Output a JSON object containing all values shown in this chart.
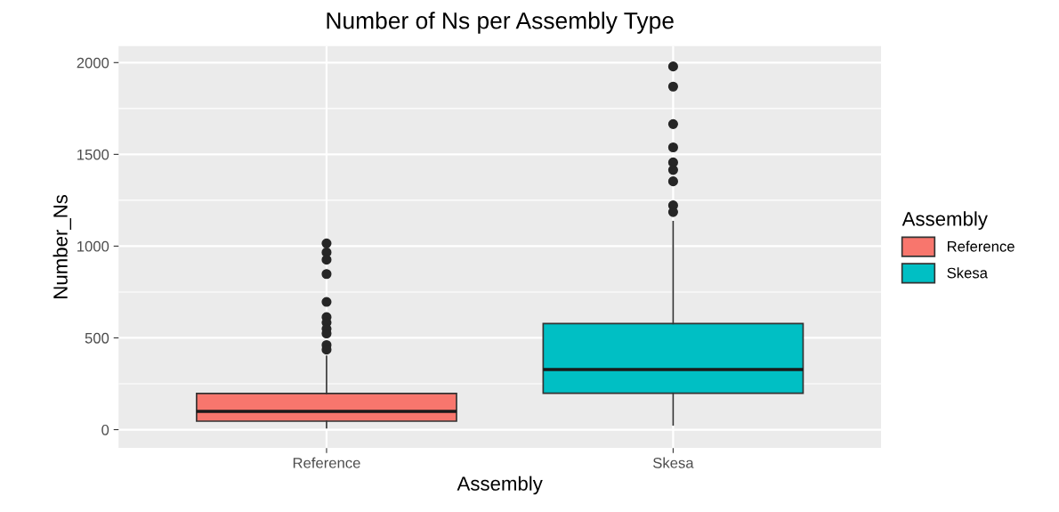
{
  "chart_data": {
    "type": "box",
    "title": "Number of Ns per Assembly Type",
    "xlabel": "Assembly",
    "ylabel": "Number_Ns",
    "legend_title": "Assembly",
    "categories": [
      "Reference",
      "Skesa"
    ],
    "series": [
      {
        "name": "Reference",
        "color": "#f8766d",
        "boxes": [
          {
            "low": 10,
            "q1": 46,
            "median": 100,
            "q3": 197,
            "high": 400,
            "outliers": [
              1015,
              966,
              926,
              848,
              696,
              613,
              583,
              549,
              524,
              461,
              436
            ]
          },
          null
        ]
      },
      {
        "name": "Skesa",
        "color": "#00bfc4",
        "boxes": [
          null,
          {
            "low": 26,
            "q1": 198,
            "median": 328,
            "q3": 578,
            "high": 1134,
            "outliers": [
              1979,
              1869,
              1665,
              1538,
              1456,
              1415,
              1353,
              1222,
              1186
            ]
          }
        ]
      }
    ],
    "ylim": [
      -100,
      2090
    ],
    "yticks": [
      0,
      500,
      1000,
      1500,
      2000
    ],
    "grid": true,
    "legend": "right"
  }
}
